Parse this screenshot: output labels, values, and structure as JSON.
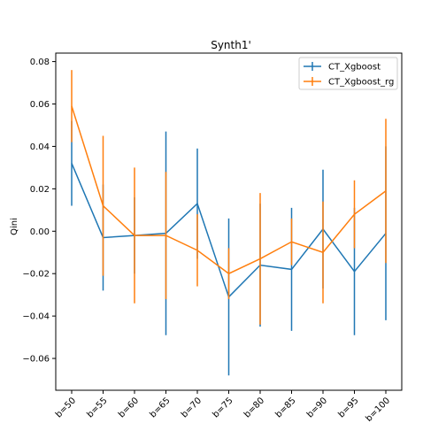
{
  "chart_data": {
    "type": "line",
    "title": "Synth1'",
    "xlabel": "",
    "ylabel": "Qini",
    "categories": [
      "b=50",
      "b=55",
      "b=60",
      "b=65",
      "b=70",
      "b=75",
      "b=80",
      "b=85",
      "b=90",
      "b=95",
      "b=100"
    ],
    "ylim": [
      -0.075,
      0.084
    ],
    "yticks": [
      -0.06,
      -0.04,
      -0.02,
      0.0,
      0.02,
      0.04,
      0.06,
      0.08
    ],
    "ytick_labels": [
      "−0.06",
      "−0.04",
      "−0.02",
      "0.00",
      "0.02",
      "0.04",
      "0.06",
      "0.08"
    ],
    "grid": false,
    "legend_position": "top-right",
    "series": [
      {
        "name": "CT_Xgboost",
        "color": "#1f77b4",
        "values": [
          0.032,
          -0.003,
          -0.002,
          -0.001,
          0.013,
          -0.031,
          -0.016,
          -0.018,
          0.001,
          -0.019,
          -0.001
        ],
        "errors": [
          0.02,
          0.025,
          0.018,
          0.048,
          0.026,
          0.037,
          0.029,
          0.029,
          0.028,
          0.03,
          0.041
        ]
      },
      {
        "name": "CT_Xgboost_rg",
        "color": "#ff7f0e",
        "values": [
          0.059,
          0.012,
          -0.002,
          -0.002,
          -0.009,
          -0.02,
          -0.013,
          -0.005,
          -0.01,
          0.008,
          0.019
        ],
        "errors": [
          0.017,
          0.033,
          0.032,
          0.03,
          0.017,
          0.012,
          0.031,
          0.011,
          0.024,
          0.016,
          0.034
        ]
      }
    ]
  }
}
